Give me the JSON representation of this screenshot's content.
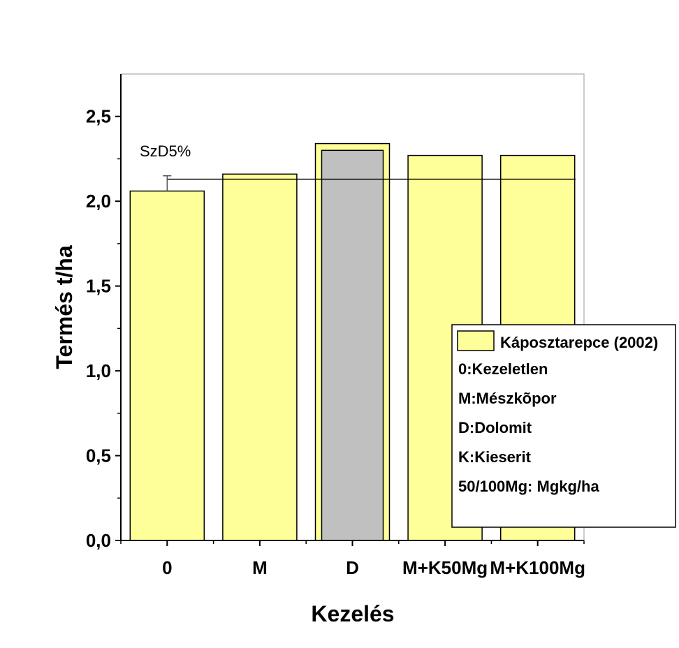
{
  "chart_data": {
    "type": "bar",
    "title": "",
    "xlabel": "Kezelés",
    "ylabel": "Termés t/ha",
    "categories": [
      "0",
      "M",
      "D",
      "M+K50Mg",
      "M+K100Mg"
    ],
    "series": [
      {
        "name": "Káposztarepce (2002)",
        "values": [
          2.06,
          2.16,
          2.34,
          2.27,
          2.27
        ]
      },
      {
        "name": "D (overlay)",
        "category": "D",
        "value": 2.3
      }
    ],
    "ylim": [
      0,
      2.75
    ],
    "yticks": [
      "0,0",
      "0,5",
      "1,0",
      "1,5",
      "2,0",
      "2,5"
    ],
    "ytick_values": [
      0,
      0.5,
      1.0,
      1.5,
      2.0,
      2.5
    ],
    "annotation": {
      "label": "SzD5%",
      "reference_value": 2.13,
      "error_top": 2.15
    },
    "legend": {
      "position": "bottom-right",
      "series_label": "Káposztarepce (2002)",
      "notes": [
        "0:Kezeletlen",
        "M:Mészkõpor",
        "D:Dolomit",
        "K:Kieserit",
        "50/100Mg: Mgkg/ha"
      ]
    },
    "colors": {
      "bar_fill": "#ffff99",
      "overlay_fill": "#c0c0c0",
      "line": "#000000",
      "frame": "#999999"
    }
  }
}
